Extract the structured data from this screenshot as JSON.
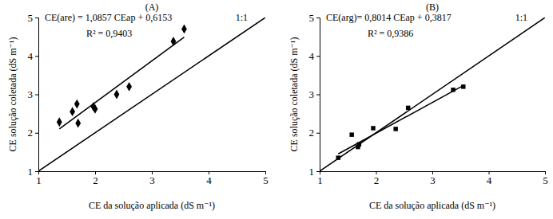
{
  "chart_data": [
    {
      "type": "scatter",
      "title": "(A)",
      "x_label": "CE da solução aplicada (dS m⁻¹)",
      "y_label": "CE solução coletada (dS m⁻¹)",
      "x": [
        1.37,
        1.6,
        1.68,
        1.7,
        1.97,
        2.0,
        2.38,
        2.6,
        3.38,
        3.57
      ],
      "values": [
        2.28,
        2.55,
        2.75,
        2.25,
        2.68,
        2.62,
        3.0,
        3.2,
        4.38,
        4.7
      ],
      "marker": "diamond",
      "color": "#000000",
      "xlim": [
        1,
        5
      ],
      "ylim": [
        1,
        5
      ],
      "xticks": [
        1,
        2,
        3,
        4,
        5
      ],
      "yticks": [
        1,
        2,
        3,
        4,
        5
      ],
      "lines": [
        {
          "name": "1:1",
          "x": [
            1,
            5
          ],
          "values": [
            1,
            5
          ],
          "line_style": "solid"
        },
        {
          "x": [
            1.37,
            3.57
          ],
          "values": [
            2.1,
            4.49
          ],
          "line_style": "solid"
        }
      ],
      "annotations": [
        "CE(are) = 1,0857 CEap + 0,6153",
        "R² = 0,9403"
      ]
    },
    {
      "type": "scatter",
      "title": "(B)",
      "x_label": "CE da solução aplicada (dS m⁻¹)",
      "y_label": "CE solução coletada (dS m⁻¹)",
      "x": [
        1.33,
        1.57,
        1.68,
        1.7,
        1.95,
        2.35,
        2.57,
        3.37,
        3.55
      ],
      "values": [
        1.35,
        1.95,
        1.63,
        1.7,
        2.12,
        2.1,
        2.65,
        3.12,
        3.2
      ],
      "marker": "square",
      "color": "#000000",
      "xlim": [
        1,
        5
      ],
      "ylim": [
        1,
        5
      ],
      "xticks": [
        1,
        2,
        3,
        4,
        5
      ],
      "yticks": [
        1,
        2,
        3,
        4,
        5
      ],
      "lines": [
        {
          "name": "1:1",
          "x": [
            1,
            5
          ],
          "values": [
            1,
            5
          ],
          "line_style": "solid"
        },
        {
          "x": [
            1.33,
            3.55
          ],
          "values": [
            1.45,
            3.23
          ],
          "line_style": "solid"
        }
      ],
      "annotations": [
        "CE(arg)= 0,8014 CEap + 0,3817",
        "R² = 0,9386"
      ]
    }
  ]
}
